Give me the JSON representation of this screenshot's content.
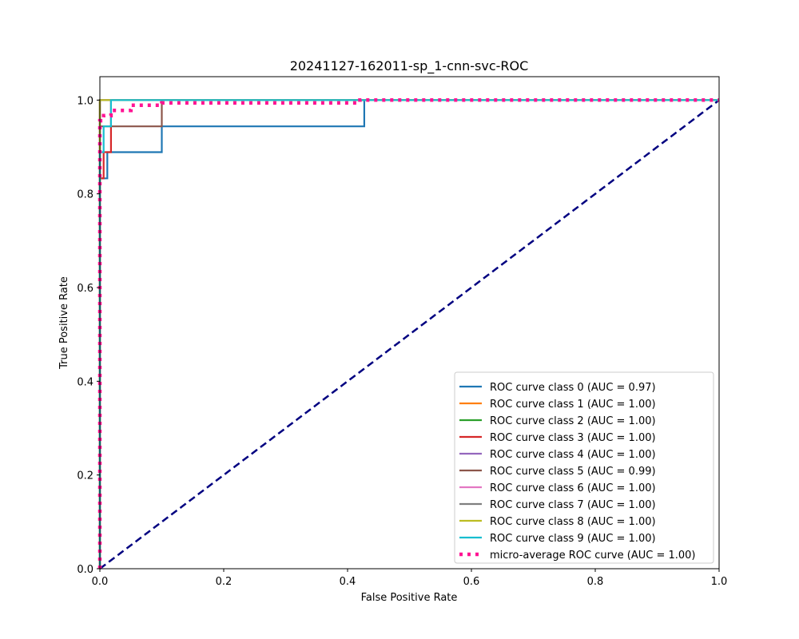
{
  "chart_data": {
    "type": "line",
    "title": "20241127-162011-sp_1-cnn-svc-ROC",
    "xlabel": "False Positive Rate",
    "ylabel": "True Positive Rate",
    "xlim": [
      0.0,
      1.0
    ],
    "ylim": [
      0.0,
      1.05
    ],
    "xticks": [
      0.0,
      0.2,
      0.4,
      0.6,
      0.8,
      1.0
    ],
    "yticks": [
      0.0,
      0.2,
      0.4,
      0.6,
      0.8,
      1.0
    ],
    "xtick_labels": [
      "0.0",
      "0.2",
      "0.4",
      "0.6",
      "0.8",
      "1.0"
    ],
    "ytick_labels": [
      "0.0",
      "0.2",
      "0.4",
      "0.6",
      "0.8",
      "1.0"
    ],
    "grid": false,
    "legend_position": "lower-right",
    "series": [
      {
        "name": "ROC curve class 0 (AUC = 0.97)",
        "color": "#1f77b4",
        "style": "solid",
        "x": [
          0,
          0,
          0.012,
          0.012,
          0.1,
          0.1,
          0.427,
          0.427,
          1.0
        ],
        "y": [
          0,
          0.833,
          0.833,
          0.889,
          0.889,
          0.944,
          0.944,
          1.0,
          1.0
        ]
      },
      {
        "name": "ROC curve class 1 (AUC = 1.00)",
        "color": "#ff7f0e",
        "style": "solid",
        "x": [
          0,
          0,
          1.0
        ],
        "y": [
          0,
          1.0,
          1.0
        ]
      },
      {
        "name": "ROC curve class 2 (AUC = 1.00)",
        "color": "#2ca02c",
        "style": "solid",
        "x": [
          0,
          0,
          1.0
        ],
        "y": [
          0,
          1.0,
          1.0
        ]
      },
      {
        "name": "ROC curve class 3 (AUC = 1.00)",
        "color": "#d62728",
        "style": "solid",
        "x": [
          0,
          0,
          0.006,
          0.006,
          0.018,
          0.018,
          1.0
        ],
        "y": [
          0,
          0.833,
          0.833,
          0.889,
          0.889,
          1.0,
          1.0
        ]
      },
      {
        "name": "ROC curve class 4 (AUC = 1.00)",
        "color": "#9467bd",
        "style": "solid",
        "x": [
          0,
          0,
          1.0
        ],
        "y": [
          0,
          1.0,
          1.0
        ]
      },
      {
        "name": "ROC curve class 5 (AUC = 0.99)",
        "color": "#8c564b",
        "style": "solid",
        "x": [
          0,
          0,
          0.018,
          0.018,
          0.1,
          0.1,
          1.0
        ],
        "y": [
          0,
          0.944,
          0.944,
          0.944,
          0.944,
          1.0,
          1.0
        ]
      },
      {
        "name": "ROC curve class 6 (AUC = 1.00)",
        "color": "#e377c2",
        "style": "solid",
        "x": [
          0,
          0,
          1.0
        ],
        "y": [
          0,
          1.0,
          1.0
        ]
      },
      {
        "name": "ROC curve class 7 (AUC = 1.00)",
        "color": "#7f7f7f",
        "style": "solid",
        "x": [
          0,
          0,
          1.0
        ],
        "y": [
          0,
          1.0,
          1.0
        ]
      },
      {
        "name": "ROC curve class 8 (AUC = 1.00)",
        "color": "#bcbd22",
        "style": "solid",
        "x": [
          0,
          0,
          1.0
        ],
        "y": [
          0,
          1.0,
          1.0
        ]
      },
      {
        "name": "ROC curve class 9 (AUC = 1.00)",
        "color": "#17becf",
        "style": "solid",
        "x": [
          0,
          0,
          0.006,
          0.006,
          0.018,
          0.018,
          1.0
        ],
        "y": [
          0,
          0.889,
          0.889,
          0.944,
          0.944,
          1.0,
          1.0
        ]
      },
      {
        "name": "micro-average ROC curve (AUC = 1.00)",
        "color": "#ff1493",
        "style": "dotted",
        "x": [
          0,
          0,
          0.006,
          0.006,
          0.018,
          0.018,
          0.05,
          0.05,
          0.1,
          0.1,
          0.42,
          0.42,
          1.0
        ],
        "y": [
          0,
          0.956,
          0.956,
          0.967,
          0.967,
          0.978,
          0.978,
          0.989,
          0.989,
          0.994,
          0.994,
          1.0,
          1.0
        ]
      }
    ],
    "reference_line": {
      "color": "#000080",
      "style": "dashed",
      "x": [
        0,
        1
      ],
      "y": [
        0,
        1
      ]
    }
  }
}
